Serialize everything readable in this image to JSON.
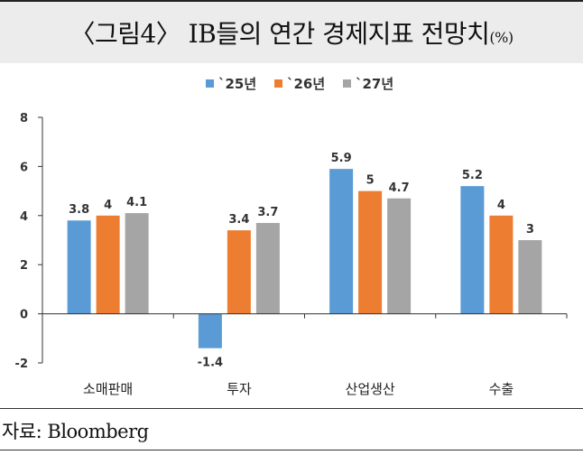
{
  "header": {
    "title": "〈그림4〉 IB들의 연간 경제지표 전망치",
    "unit": "(%)"
  },
  "footer": {
    "source": "자료: Bloomberg"
  },
  "chart_data": {
    "type": "bar",
    "categories": [
      "소매판매",
      "투자",
      "산업생산",
      "수출"
    ],
    "series": [
      {
        "name": "`25년",
        "color": "#5b9bd5",
        "values": [
          3.8,
          -1.4,
          5.9,
          5.2
        ]
      },
      {
        "name": "`26년",
        "color": "#ed7d31",
        "values": [
          4,
          3.4,
          5,
          4
        ]
      },
      {
        "name": "`27년",
        "color": "#a5a5a5",
        "values": [
          4.1,
          3.7,
          4.7,
          3
        ]
      }
    ],
    "data_labels": [
      [
        "3.8",
        "-1.4",
        "5.9",
        "5.2"
      ],
      [
        "4",
        "3.4",
        "5",
        "4"
      ],
      [
        "4.1",
        "3.7",
        "4.7",
        "3"
      ]
    ],
    "yticks": [
      -2,
      0,
      2,
      4,
      6,
      8
    ],
    "ylim": [
      -2,
      8
    ],
    "legend_position": "top-center",
    "grid": false
  }
}
